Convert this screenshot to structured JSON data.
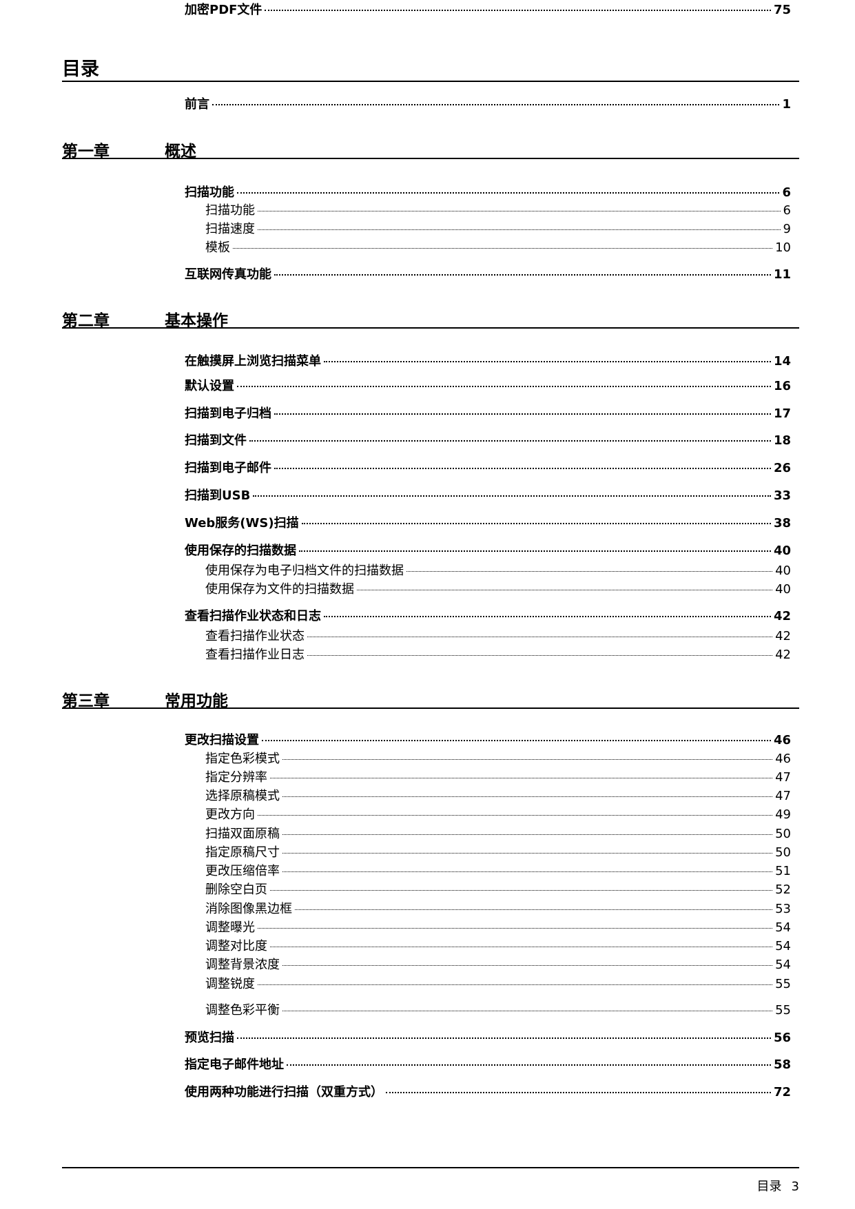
{
  "page_title": "目录",
  "preface": {
    "title": "前言",
    "page": "1"
  },
  "chapters": [
    {
      "label": "第一章",
      "title": "概述",
      "entries": [
        {
          "title": "扫描功能",
          "page": "6",
          "level": 1
        },
        {
          "title": "扫描功能",
          "page": "6",
          "level": 2
        },
        {
          "title": "扫描速度",
          "page": "9",
          "level": 2
        },
        {
          "title": "模板",
          "page": "10",
          "level": 2
        },
        {
          "title": "互联网传真功能",
          "page": "11",
          "level": 1
        }
      ]
    },
    {
      "label": "第二章",
      "title": "基本操作",
      "entries": [
        {
          "title": "在触摸屏上浏览扫描菜单",
          "page": "14",
          "level": 1
        },
        {
          "title": "默认设置",
          "page": "16",
          "level": 1
        },
        {
          "title": "扫描到电子归档",
          "page": "17",
          "level": 1
        },
        {
          "title": "扫描到文件",
          "page": "18",
          "level": 1
        },
        {
          "title": "扫描到电子邮件",
          "page": "26",
          "level": 1
        },
        {
          "title": "扫描到USB",
          "page": "33",
          "level": 1
        },
        {
          "title": "Web服务(WS)扫描",
          "page": "38",
          "level": 1
        },
        {
          "title": "使用保存的扫描数据",
          "page": "40",
          "level": 1
        },
        {
          "title": "使用保存为电子归档文件的扫描数据",
          "page": "40",
          "level": 2
        },
        {
          "title": "使用保存为文件的扫描数据",
          "page": "40",
          "level": 2
        },
        {
          "title": "查看扫描作业状态和日志",
          "page": "42",
          "level": 1
        },
        {
          "title": "查看扫描作业状态",
          "page": "42",
          "level": 2
        },
        {
          "title": "查看扫描作业日志",
          "page": "42",
          "level": 2
        }
      ]
    },
    {
      "label": "第三章",
      "title": "常用功能",
      "entries": [
        {
          "title": "更改扫描设置",
          "page": "46",
          "level": 1
        },
        {
          "title": "指定色彩模式",
          "page": "46",
          "level": 2
        },
        {
          "title": "指定分辨率",
          "page": "47",
          "level": 2
        },
        {
          "title": "选择原稿模式",
          "page": "47",
          "level": 2
        },
        {
          "title": "更改方向",
          "page": "49",
          "level": 2
        },
        {
          "title": "扫描双面原稿",
          "page": "50",
          "level": 2
        },
        {
          "title": "指定原稿尺寸",
          "page": "50",
          "level": 2
        },
        {
          "title": "更改压缩倍率",
          "page": "51",
          "level": 2
        },
        {
          "title": "删除空白页",
          "page": "52",
          "level": 2
        },
        {
          "title": "消除图像黑边框",
          "page": "53",
          "level": 2
        },
        {
          "title": "调整曝光",
          "page": "54",
          "level": 2
        },
        {
          "title": "调整对比度",
          "page": "54",
          "level": 2
        },
        {
          "title": "调整背景浓度",
          "page": "54",
          "level": 2
        },
        {
          "title": "调整锐度",
          "page": "55",
          "level": 2
        },
        {
          "title": "调整色彩平衡",
          "page": "55",
          "level": 2
        },
        {
          "title": "预览扫描",
          "page": "56",
          "level": 1
        },
        {
          "title": "指定电子邮件地址",
          "page": "58",
          "level": 1
        },
        {
          "title": "使用两种功能进行扫描（双重方式）",
          "page": "72",
          "level": 1
        },
        {
          "title": "加密PDF文件",
          "page": "75",
          "level": 1
        }
      ]
    }
  ],
  "footer": {
    "section": "目录",
    "page_number": "3"
  }
}
